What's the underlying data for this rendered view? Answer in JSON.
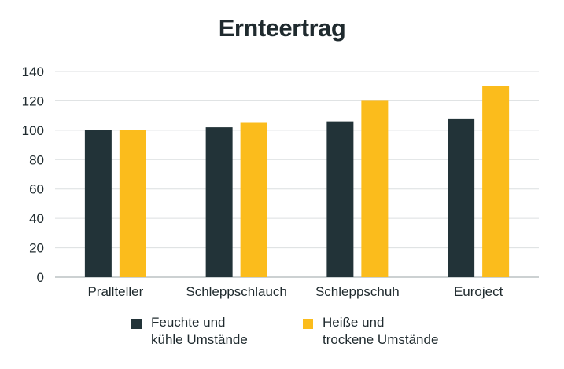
{
  "chart_data": {
    "type": "bar",
    "title": "Ernteertrag",
    "xlabel": "",
    "ylabel": "",
    "categories": [
      "Prallteller",
      "Schleppschlauch",
      "Schleppschuh",
      "Euroject"
    ],
    "series": [
      {
        "name_lines": [
          "Feuchte und",
          "kühle Umstände"
        ],
        "color": "#223338",
        "values": [
          100,
          102,
          106,
          108
        ]
      },
      {
        "name_lines": [
          "Heiße und",
          "trockene Umstände"
        ],
        "color": "#fbbc1c",
        "values": [
          100,
          105,
          120,
          130
        ]
      }
    ],
    "ylim": [
      0,
      140
    ],
    "yticks": [
      0,
      20,
      40,
      60,
      80,
      100,
      120,
      140
    ],
    "grid": true,
    "legend_position": "bottom"
  }
}
